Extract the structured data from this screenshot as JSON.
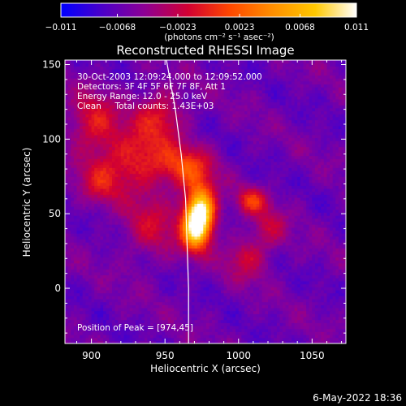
{
  "chart_data": {
    "type": "heatmap",
    "title": "Reconstructed RHESSI Image",
    "xlabel": "Heliocentric X (arcsec)",
    "ylabel": "Heliocentric Y (arcsec)",
    "xlim": [
      882,
      1073
    ],
    "ylim": [
      -37,
      153
    ],
    "x_ticks": [
      "900",
      "950",
      "1000",
      "1050"
    ],
    "x_tick_values": [
      900,
      950,
      1000,
      1050
    ],
    "y_ticks": [
      "0",
      "50",
      "100",
      "150"
    ],
    "y_tick_values": [
      0,
      50,
      100,
      150
    ],
    "colorbar": {
      "range": [
        -0.011,
        0.011
      ],
      "tick_values": [
        -0.011,
        -0.0068,
        -0.0023,
        0.0023,
        0.0068,
        0.011
      ],
      "tick_labels": [
        "−0.011",
        "−0.0068",
        "−0.0023",
        "0.0023",
        "0.0068",
        "0.011"
      ],
      "units": "(photons cm⁻² s⁻¹ asec⁻²)",
      "colormap": [
        "#0000ff",
        "#4b00c8",
        "#8c0096",
        "#d20032",
        "#ff4600",
        "#ff8c00",
        "#ffc800",
        "#ffffff"
      ]
    },
    "annotations": [
      "30-Oct-2003 12:09:24.000 to 12:09:52.000",
      "Detectors: 3F 4F 5F 6F 7F 8F, Att 1",
      "Energy Range: 12.0 - 25.0 keV",
      "Clean     Total counts: 1.43E+03"
    ],
    "peak_label": "Position of Peak = [974,45]",
    "peak": [
      974,
      45
    ],
    "limb_points": [
      [
        951,
        153
      ],
      [
        957,
        120
      ],
      [
        961,
        90
      ],
      [
        964,
        60
      ],
      [
        965,
        30
      ],
      [
        966,
        0
      ],
      [
        966,
        -37
      ]
    ],
    "sources": [
      {
        "x": 973,
        "y": 50,
        "amp": 1.0,
        "sx": 7,
        "sy": 12
      },
      {
        "x": 969,
        "y": 38,
        "amp": 0.55,
        "sx": 6,
        "sy": 10
      },
      {
        "x": 1008,
        "y": 58,
        "amp": 0.35,
        "sx": 7,
        "sy": 6
      },
      {
        "x": 930,
        "y": 85,
        "amp": 0.35,
        "sx": 18,
        "sy": 14
      },
      {
        "x": 900,
        "y": 110,
        "amp": 0.3,
        "sx": 12,
        "sy": 14
      },
      {
        "x": 945,
        "y": 115,
        "amp": 0.3,
        "sx": 12,
        "sy": 12
      },
      {
        "x": 965,
        "y": 80,
        "amp": 0.35,
        "sx": 12,
        "sy": 10
      },
      {
        "x": 1005,
        "y": 20,
        "amp": 0.25,
        "sx": 10,
        "sy": 10
      },
      {
        "x": 940,
        "y": 40,
        "amp": 0.22,
        "sx": 14,
        "sy": 16
      },
      {
        "x": 1020,
        "y": 40,
        "amp": 0.2,
        "sx": 8,
        "sy": 10
      },
      {
        "x": 905,
        "y": 70,
        "amp": 0.22,
        "sx": 10,
        "sy": 10
      }
    ]
  },
  "footer": {
    "date": "6-May-2022 18:36"
  }
}
